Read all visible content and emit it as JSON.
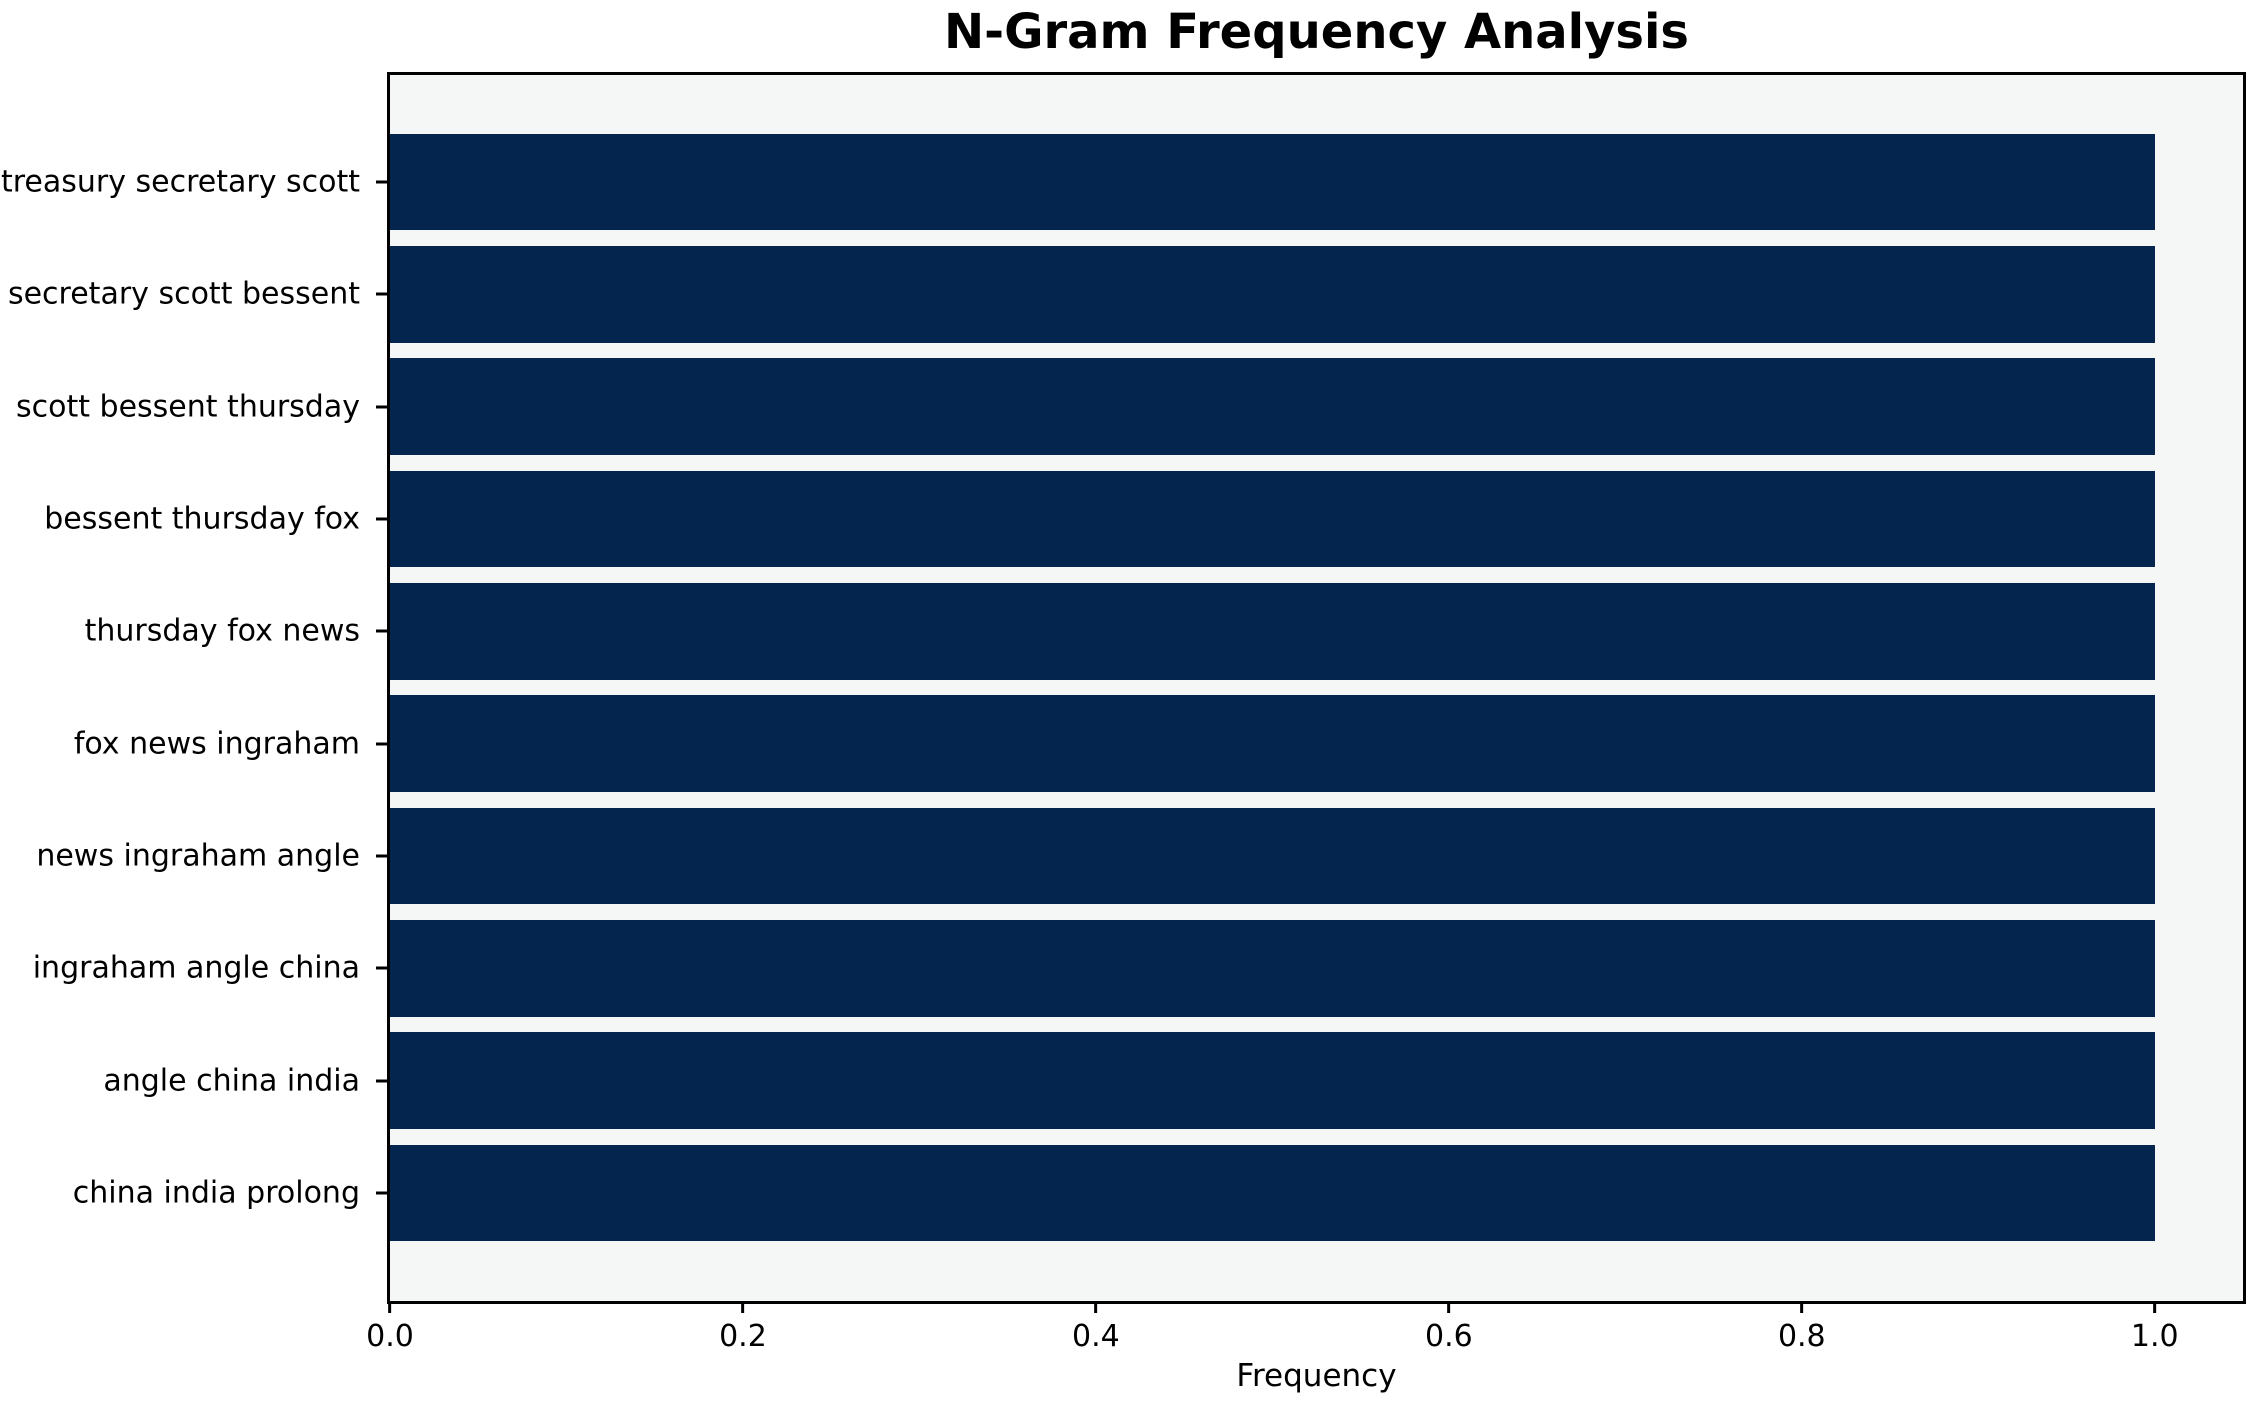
{
  "chart_data": {
    "type": "bar",
    "orientation": "horizontal",
    "title": "N-Gram Frequency Analysis",
    "xlabel": "Frequency",
    "ylabel": "",
    "categories": [
      "treasury secretary scott",
      "secretary scott bessent",
      "scott bessent thursday",
      "bessent thursday fox",
      "thursday fox news",
      "fox news ingraham",
      "news ingraham angle",
      "ingraham angle china",
      "angle china india",
      "china india prolong"
    ],
    "values": [
      1.0,
      1.0,
      1.0,
      1.0,
      1.0,
      1.0,
      1.0,
      1.0,
      1.0,
      1.0
    ],
    "x_tick_labels": [
      "0.0",
      "0.2",
      "0.4",
      "0.6",
      "0.8",
      "1.0"
    ],
    "x_tick_values": [
      0.0,
      0.2,
      0.4,
      0.6,
      0.8,
      1.0
    ],
    "xlim": [
      0,
      1.05
    ],
    "bar_color": "#03254e",
    "plot_bg": "#f5f6f6",
    "figure_bg": "#ffffff",
    "spine_color": "#000000",
    "grid": false,
    "legend": false
  }
}
